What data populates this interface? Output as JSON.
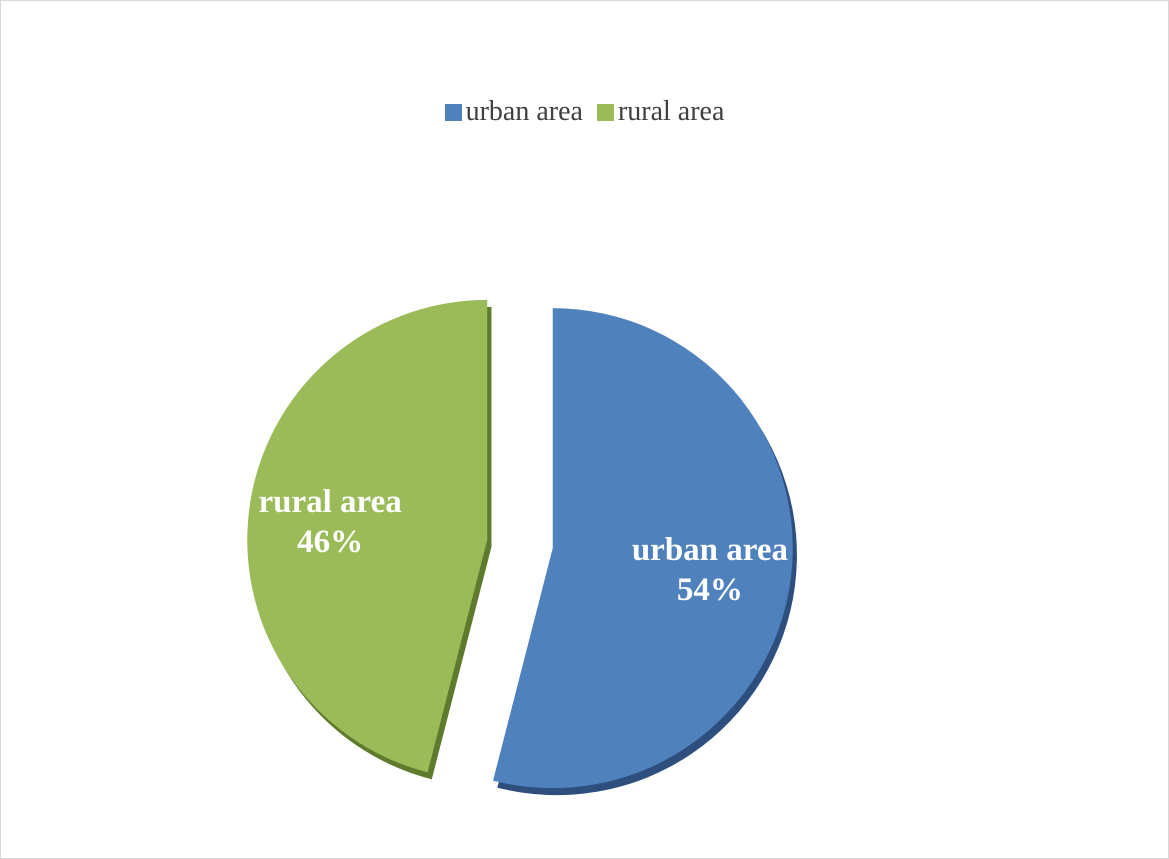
{
  "chart_data": {
    "type": "pie",
    "style": "3d-exploded",
    "legend_position": "top",
    "categories": [
      "urban area",
      "rural area"
    ],
    "values": [
      54,
      46
    ],
    "unit": "%",
    "colors": [
      "#4F81BD",
      "#9BBB59"
    ],
    "shadow_colors": [
      "#2E4F7E",
      "#5E7A2C"
    ],
    "data_labels": [
      {
        "name": "urban area",
        "value": "54%"
      },
      {
        "name": "rural area",
        "value": "46%"
      }
    ]
  }
}
